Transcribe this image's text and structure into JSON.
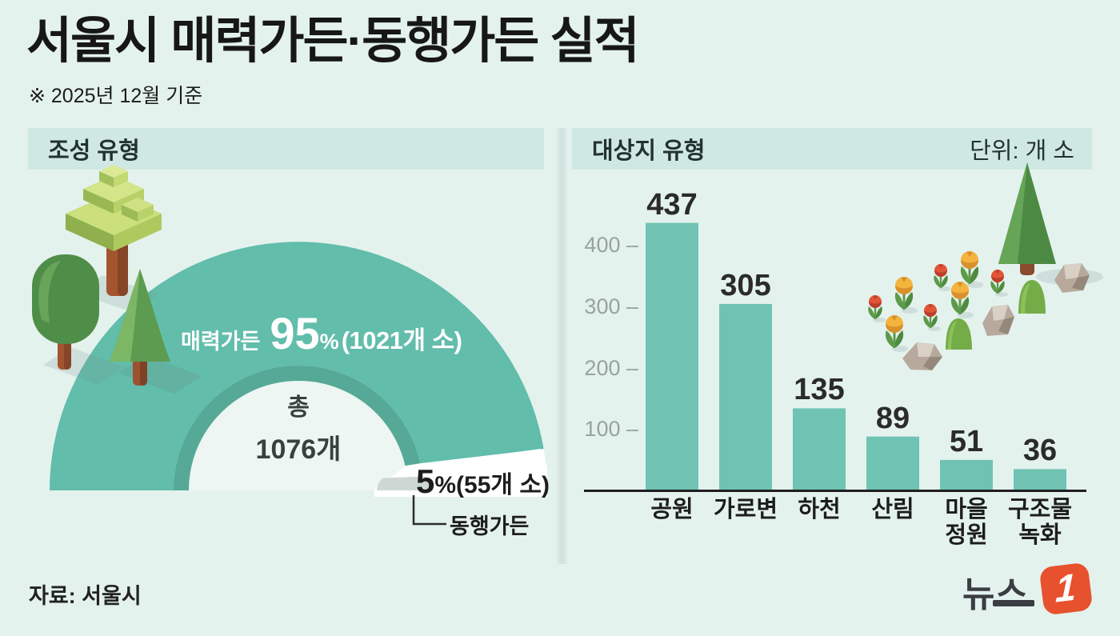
{
  "title": "서울시 매력가든·동행가든 실적",
  "subtitle": "※ 2025년 12월 기준",
  "source": "자료: 서울시",
  "logo": {
    "text": "뉴스",
    "one": "1"
  },
  "colors": {
    "background": "#E4F2EE",
    "panel_header": "#D0E8E3",
    "donut_teal": "#62BDAB",
    "donut_inner_ring": "#55A996",
    "donut_small_slice": "#CDD8D4",
    "bar": "#6FC3B2",
    "logo_red": "#E7512E"
  },
  "left_panel": {
    "header": "조성 유형"
  },
  "right_panel": {
    "header": "대상지 유형",
    "unit": "단위: 개 소"
  },
  "chart_data": [
    {
      "type": "pie",
      "title": "조성 유형",
      "shape": "semicircle-donut",
      "center_label": {
        "line1": "총",
        "line2": "1076개"
      },
      "slices": [
        {
          "label": "매력가든",
          "pct": 95,
          "pct_display": "95",
          "pct_sign": "%",
          "detail": "(1021개 소)",
          "color": "#62BDAB"
        },
        {
          "label": "동행가든",
          "pct": 5,
          "pct_display": "5",
          "pct_sign": "%",
          "detail": "(55개 소)",
          "color": "#CDD8D4"
        }
      ]
    },
    {
      "type": "bar",
      "title": "대상지 유형",
      "unit": "개 소",
      "categories": [
        "공원",
        "가로변",
        "하천",
        "산림",
        "마을\n정원",
        "구조물\n녹화"
      ],
      "values": [
        437,
        305,
        135,
        89,
        51,
        36
      ],
      "yticks": [
        100,
        200,
        300,
        400
      ],
      "ylim": [
        0,
        450
      ],
      "grid": false,
      "legend": false
    }
  ]
}
